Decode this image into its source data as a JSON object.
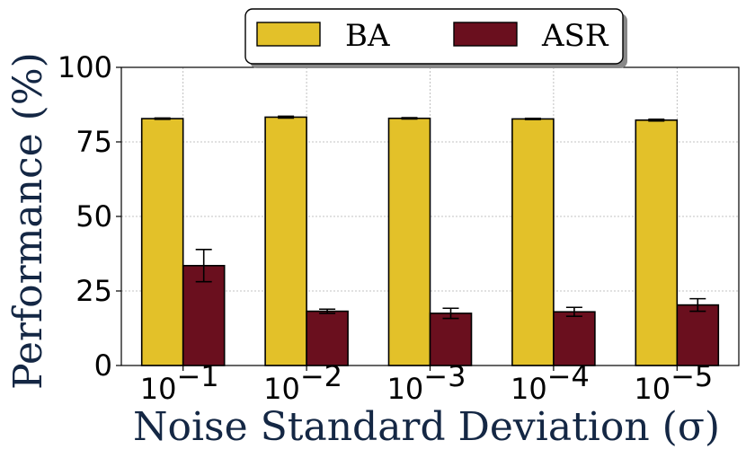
{
  "chart_data": {
    "type": "bar",
    "title": "",
    "xlabel": "Noise Standard Deviation (σ)",
    "ylabel": "Performance (%)",
    "ylim": [
      0,
      100
    ],
    "yticks": [
      0,
      25,
      50,
      75,
      100
    ],
    "grid": true,
    "legend_position": "top-center",
    "categories": [
      {
        "base": "10",
        "exp": "−1"
      },
      {
        "base": "10",
        "exp": "−2"
      },
      {
        "base": "10",
        "exp": "−3"
      },
      {
        "base": "10",
        "exp": "−4"
      },
      {
        "base": "10",
        "exp": "−5"
      }
    ],
    "series": [
      {
        "name": "BA",
        "color": "#E3C129",
        "values": [
          82.8,
          83.3,
          82.9,
          82.7,
          82.3
        ],
        "errors": [
          0.2,
          0.3,
          0.2,
          0.2,
          0.3
        ]
      },
      {
        "name": "ASR",
        "color": "#6A0F1E",
        "values": [
          33.5,
          18.2,
          17.5,
          18.0,
          20.3
        ],
        "errors": [
          5.4,
          0.7,
          1.7,
          1.5,
          2.1
        ]
      }
    ]
  }
}
